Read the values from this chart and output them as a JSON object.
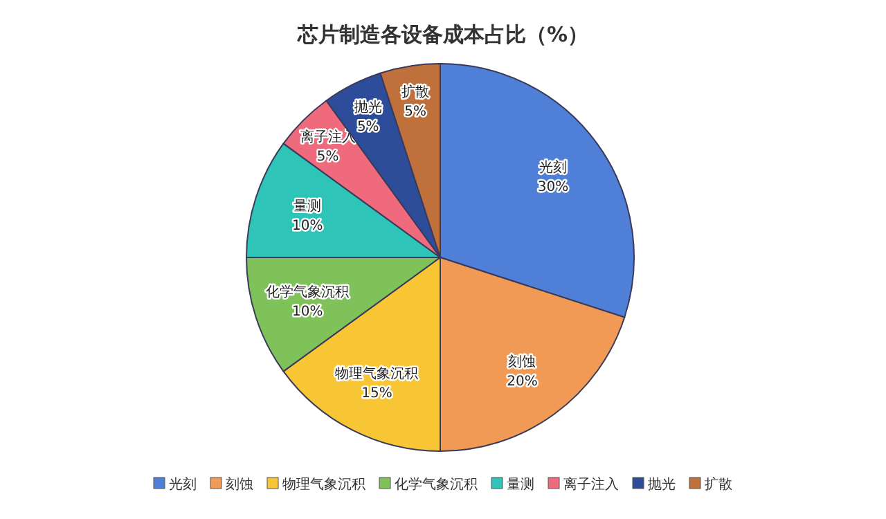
{
  "chart_data": {
    "type": "pie",
    "title": "芯片制造各设备成本占比（%）",
    "categories": [
      "光刻",
      "刻蚀",
      "物理气象沉积",
      "化学气象沉积",
      "量测",
      "离子注入",
      "抛光",
      "扩散"
    ],
    "values": [
      30,
      20,
      15,
      10,
      10,
      5,
      5,
      5
    ],
    "colors": [
      "#4f7fd6",
      "#f09a55",
      "#f8c534",
      "#7fc25a",
      "#2ec4b8",
      "#ee6a7c",
      "#2d4d9a",
      "#c0703a"
    ],
    "value_labels": [
      "30%",
      "20%",
      "15%",
      "10%",
      "10%",
      "5%",
      "5%",
      "5%"
    ],
    "legend": "bottom"
  }
}
